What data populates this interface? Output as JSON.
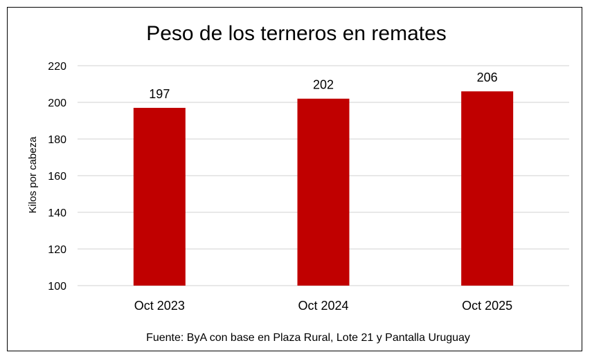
{
  "chart_data": {
    "type": "bar",
    "title": "Peso de los terneros en remates",
    "ylabel": "Kilos por cabeza",
    "xlabel": "",
    "categories": [
      "Oct 2023",
      "Oct 2024",
      "Oct 2025"
    ],
    "values": [
      197,
      202,
      206
    ],
    "data_labels": [
      "197",
      "202",
      "206"
    ],
    "ylim": [
      100,
      220
    ],
    "yticks": [
      100,
      120,
      140,
      160,
      180,
      200,
      220
    ],
    "grid": true,
    "legend": "none",
    "bar_color": "#c00000",
    "source": "Fuente: ByA con base en Plaza Rural, Lote 21 y Pantalla Uruguay"
  }
}
